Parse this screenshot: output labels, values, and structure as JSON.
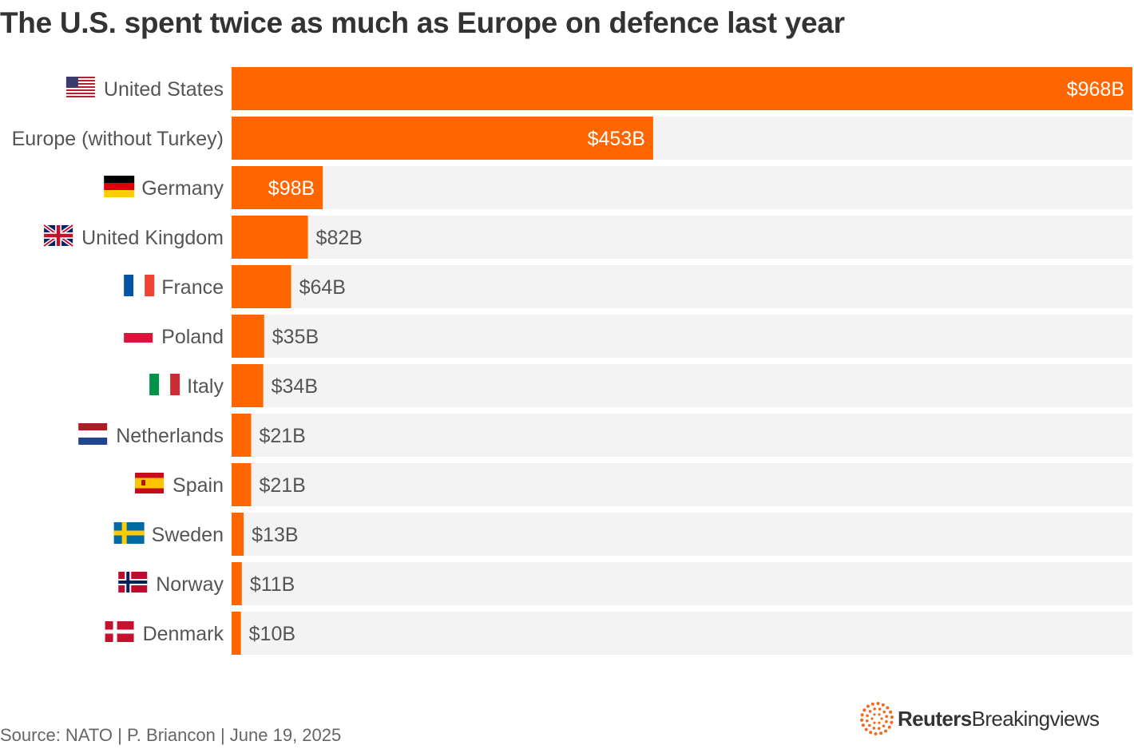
{
  "chart_data": {
    "type": "bar",
    "orientation": "horizontal",
    "title": "The U.S. spent twice as much as Europe on defence last year",
    "unit": "USD billions",
    "xlim": [
      0,
      968
    ],
    "categories": [
      "United States",
      "Europe (without Turkey)",
      "Germany",
      "United Kingdom",
      "France",
      "Poland",
      "Italy",
      "Netherlands",
      "Spain",
      "Sweden",
      "Norway",
      "Denmark"
    ],
    "values": [
      968,
      453,
      98,
      82,
      64,
      35,
      34,
      21,
      21,
      13,
      11,
      10
    ],
    "value_labels": [
      "$968B",
      "$453B",
      "$98B",
      "$82B",
      "$64B",
      "$35B",
      "$34B",
      "$21B",
      "$21B",
      "$13B",
      "$11B",
      "$10B"
    ],
    "flags": [
      "us-flag-icon",
      "",
      "germany-flag-icon",
      "uk-flag-icon",
      "france-flag-icon",
      "poland-flag-icon",
      "italy-flag-icon",
      "netherlands-flag-icon",
      "spain-flag-icon",
      "sweden-flag-icon",
      "norway-flag-icon",
      "denmark-flag-icon"
    ]
  },
  "colors": {
    "bar": "#ff6600",
    "track": "#f3f3f3",
    "label_text": "#555555",
    "value_inside": "#ffffff",
    "value_outside": "#555555",
    "brand_orange": "#f26a1b"
  },
  "footer": {
    "source": "Source: NATO | P. Briancon | June 19, 2025",
    "brand_bold": "Reuters",
    "brand_regular": "Breakingviews"
  }
}
